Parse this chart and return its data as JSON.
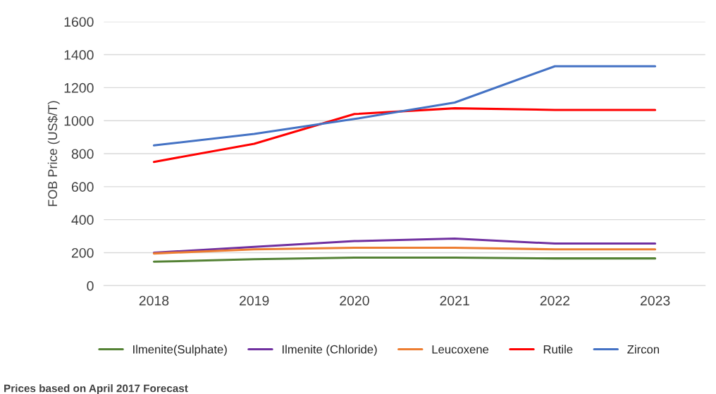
{
  "chart_data": {
    "type": "line",
    "ylabel": "FOB Price (US$/T)",
    "categories": [
      "2018",
      "2019",
      "2020",
      "2021",
      "2022",
      "2023"
    ],
    "series": [
      {
        "name": "Ilmenite(Sulphate)",
        "color": "#548235",
        "values": [
          145,
          160,
          170,
          170,
          165,
          165
        ]
      },
      {
        "name": "Ilmenite (Chloride)",
        "color": "#7030a0",
        "values": [
          200,
          235,
          270,
          285,
          255,
          255
        ]
      },
      {
        "name": "Leucoxene",
        "color": "#ed7d31",
        "values": [
          195,
          220,
          230,
          230,
          220,
          220
        ]
      },
      {
        "name": "Rutile",
        "color": "#ff0000",
        "values": [
          750,
          860,
          1040,
          1075,
          1065,
          1065
        ]
      },
      {
        "name": "Zircon",
        "color": "#4472c4",
        "values": [
          850,
          920,
          1010,
          1110,
          1330,
          1330
        ]
      }
    ],
    "ylim": [
      0,
      1600
    ],
    "yticks": [
      0,
      200,
      400,
      600,
      800,
      1000,
      1200,
      1400,
      1600
    ],
    "grid": "y",
    "legend": "bottom",
    "marker": "none",
    "annotations": [
      "Prices based on April 2017 Forecast"
    ]
  }
}
